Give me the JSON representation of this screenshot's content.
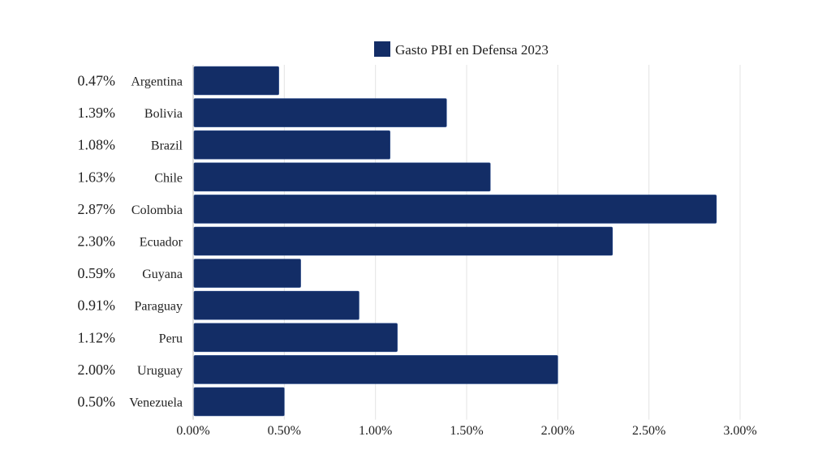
{
  "chart_data": {
    "type": "bar",
    "orientation": "horizontal",
    "title": "",
    "legend": {
      "label": "Gasto PBI en Defensa 2023",
      "position": "top"
    },
    "categories": [
      "Argentina",
      "Bolivia",
      "Brazil",
      "Chile",
      "Colombia",
      "Ecuador",
      "Guyana",
      "Paraguay",
      "Peru",
      "Uruguay",
      "Venezuela"
    ],
    "value_labels": [
      "0.47%",
      "1.39%",
      "1.08%",
      "1.63%",
      "2.87%",
      "2.30%",
      "0.59%",
      "0.91%",
      "1.12%",
      "2.00%",
      "0.50%"
    ],
    "series": [
      {
        "name": "Gasto PBI en Defensa 2023",
        "values": [
          0.47,
          1.39,
          1.08,
          1.63,
          2.87,
          2.3,
          0.59,
          0.91,
          1.12,
          2.0,
          0.5
        ]
      }
    ],
    "xlim": [
      0,
      3.0
    ],
    "xticks": [
      0,
      0.5,
      1.0,
      1.5,
      2.0,
      2.5,
      3.0
    ],
    "xtick_labels": [
      "0.00%",
      "0.50%",
      "1.00%",
      "1.50%",
      "2.00%",
      "2.50%",
      "3.00%"
    ],
    "grid": true,
    "colors": {
      "bar": "#132d66",
      "grid": "#e3e3e3",
      "axis": "#bdbdbd"
    }
  }
}
